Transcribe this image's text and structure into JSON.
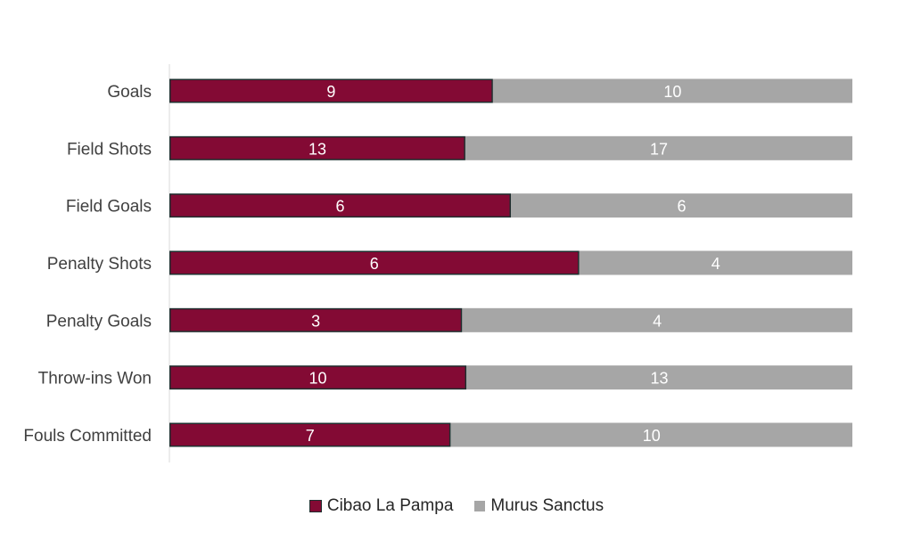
{
  "chart_data": {
    "type": "bar",
    "orientation": "horizontal",
    "stacking": "100-percent",
    "categories": [
      "Goals",
      "Field Shots",
      "Field Goals",
      "Penalty Shots",
      "Penalty Goals",
      "Throw-ins Won",
      "Fouls Committed"
    ],
    "series": [
      {
        "name": "Cibao La Pampa",
        "values": [
          9,
          13,
          6,
          6,
          3,
          10,
          7
        ],
        "color": "#830A34"
      },
      {
        "name": "Murus Sanctus",
        "values": [
          10,
          17,
          6,
          4,
          4,
          13,
          10
        ],
        "color": "#A6A6A6"
      }
    ],
    "data_labels": true,
    "legend_position": "bottom",
    "grid": false,
    "title": "",
    "xlabel": "",
    "ylabel": ""
  },
  "legend": {
    "series_a": "Cibao La Pampa",
    "series_b": "Murus Sanctus"
  }
}
